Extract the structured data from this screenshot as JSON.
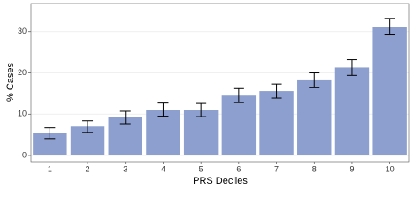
{
  "chart_data": {
    "type": "bar",
    "x_label": "PRS Deciles",
    "y_label": "% Cases",
    "categories": [
      "1",
      "2",
      "3",
      "4",
      "5",
      "6",
      "7",
      "8",
      "9",
      "10"
    ],
    "values": [
      5.4,
      7.0,
      9.2,
      11.1,
      11.0,
      14.5,
      15.6,
      18.2,
      21.3,
      31.2
    ],
    "errors": [
      1.3,
      1.4,
      1.5,
      1.6,
      1.6,
      1.7,
      1.7,
      1.8,
      1.9,
      2.0
    ],
    "color": "#8c9fcf",
    "ylim": [
      -1.5,
      36.8
    ],
    "yticks": [
      0,
      10,
      20,
      30
    ],
    "grid": true
  }
}
